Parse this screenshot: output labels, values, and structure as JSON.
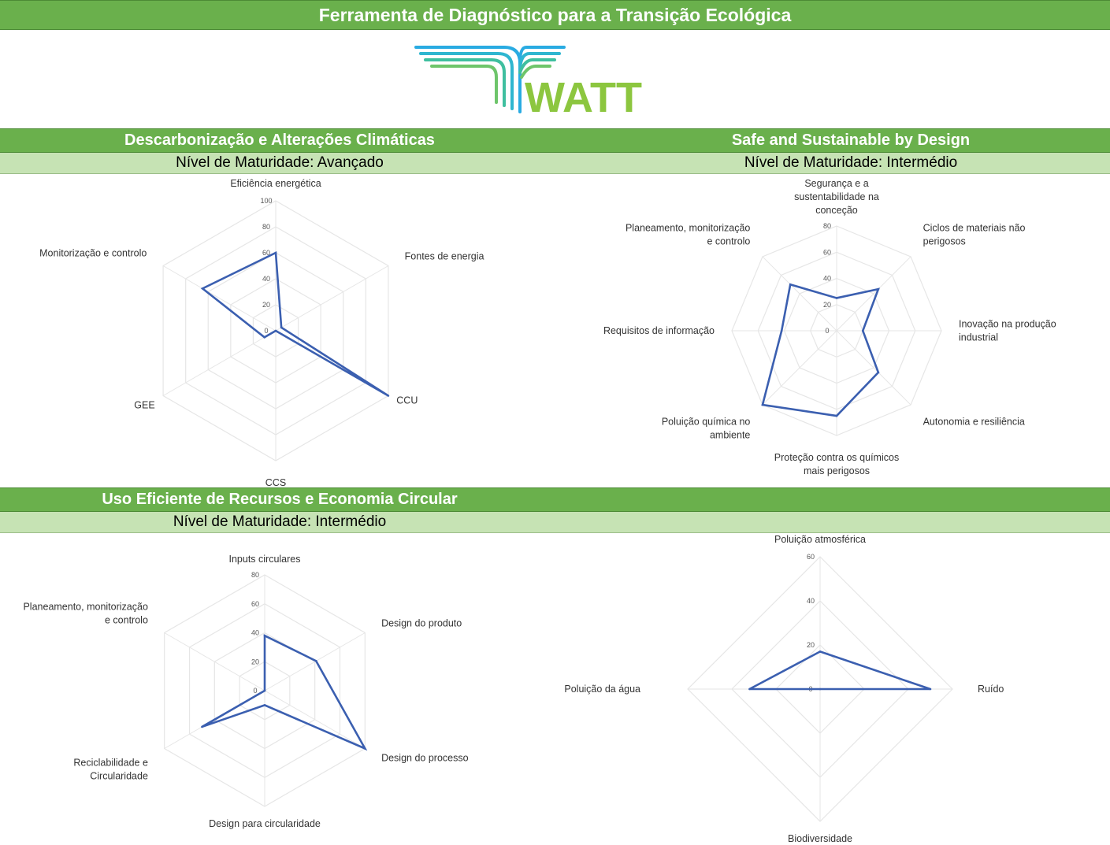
{
  "header": {
    "title": "Ferramenta de Diagnóstico para a Transição Ecológica"
  },
  "logo": {
    "text": "WATT"
  },
  "colors": {
    "header_green": "#6ab04c",
    "subheader_green": "#c6e3b4",
    "series_blue": "#3b5fb0",
    "grid_gray": "#e6e6e6",
    "logo_green": "#8cc63f",
    "logo_blue": "#29abe2",
    "logo_teal": "#3fbf9f"
  },
  "sections": {
    "decarbonization": {
      "title": "Descarbonização e Alterações Climáticas",
      "maturity": "Nível de Maturidade: Avançado"
    },
    "ssbd": {
      "title": "Safe and Sustainable by Design",
      "maturity": "Nível de Maturidade: Intermédio"
    },
    "resources": {
      "title": "Uso Eficiente de Recursos e Economia Circular",
      "maturity": "Nível de Maturidade: Intermédio"
    }
  },
  "chart_data": [
    {
      "type": "radar",
      "categories": [
        "Eficiência energética",
        "Fontes de energia",
        "CCU",
        "CCS",
        "GEE",
        "Monitorização e controlo"
      ],
      "values": [
        60,
        5,
        100,
        0,
        10,
        65
      ],
      "ticks": [
        0,
        20,
        40,
        60,
        80,
        100
      ],
      "ylim": [
        0,
        100
      ]
    },
    {
      "type": "radar",
      "categories": [
        "Segurança e a sustentabilidade na conceção",
        "Ciclos de materiais não perigosos",
        "Inovação na produção industrial",
        "Autonomia e resiliência",
        "Proteção contra os químicos mais perigosos",
        "Poluição química no ambiente",
        "Requisitos de informação",
        "Planeamento, monitorização e controlo"
      ],
      "values": [
        25,
        45,
        20,
        45,
        65,
        80,
        42,
        50
      ],
      "ticks": [
        0,
        20,
        40,
        60,
        80
      ],
      "ylim": [
        0,
        80
      ]
    },
    {
      "type": "radar",
      "categories": [
        "Inputs circulares",
        "Design do produto",
        "Design do processo",
        "Design para circularidade",
        "Reciclabilidade e Circularidade",
        "Planeamento, monitorização e controlo"
      ],
      "values": [
        38,
        41,
        80,
        10,
        50,
        0
      ],
      "ticks": [
        0,
        20,
        40,
        60,
        80
      ],
      "ylim": [
        0,
        80
      ]
    },
    {
      "type": "radar",
      "categories": [
        "Poluição atmosférica",
        "Ruído",
        "Biodiversidade",
        "Poluição da água"
      ],
      "values": [
        17,
        50,
        0,
        32
      ],
      "ticks": [
        0,
        20,
        40,
        60
      ],
      "ylim": [
        0,
        60
      ]
    }
  ]
}
